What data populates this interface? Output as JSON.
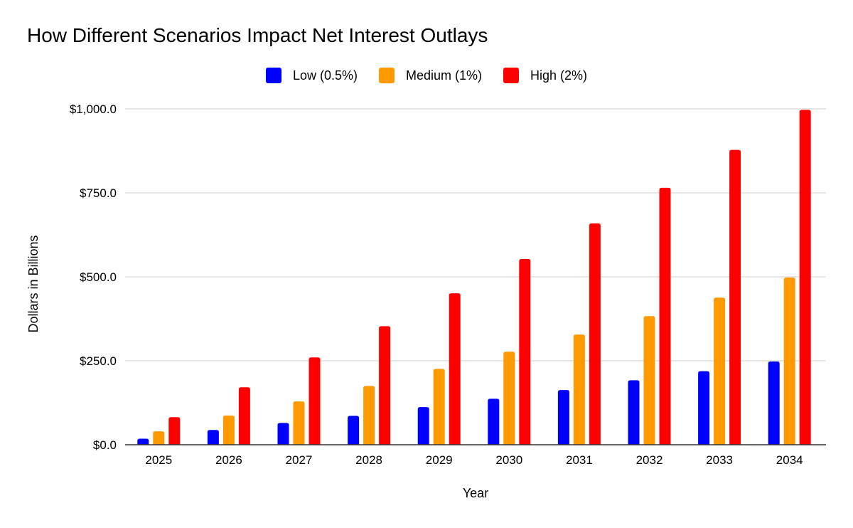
{
  "chart_data": {
    "type": "bar",
    "title": "How Different Scenarios Impact Net Interest Outlays",
    "xlabel": "Year",
    "ylabel": "Dollars in Billions",
    "ylim": [
      0,
      1000
    ],
    "yticks": [
      0,
      250,
      500,
      750,
      1000
    ],
    "ytick_labels": [
      "$0.0",
      "$250.0",
      "$500.0",
      "$750.0",
      "$1,000.0"
    ],
    "grid": true,
    "legend_position": "top-center",
    "categories": [
      "2025",
      "2026",
      "2027",
      "2028",
      "2029",
      "2030",
      "2031",
      "2032",
      "2033",
      "2034"
    ],
    "series": [
      {
        "name": "Low (0.5%)",
        "color": "#0000ff",
        "values": [
          18,
          44,
          65,
          86,
          112,
          137,
          163,
          192,
          219,
          248
        ]
      },
      {
        "name": "Medium (1%)",
        "color": "#ff9900",
        "values": [
          40,
          87,
          129,
          175,
          226,
          277,
          328,
          383,
          438,
          498
        ]
      },
      {
        "name": "High (2%)",
        "color": "#ff0000",
        "values": [
          82,
          171,
          260,
          353,
          451,
          553,
          659,
          765,
          878,
          997
        ]
      }
    ]
  }
}
